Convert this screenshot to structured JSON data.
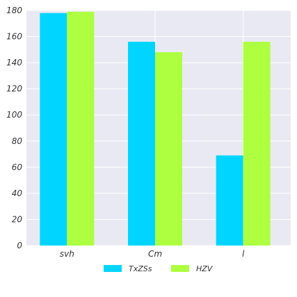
{
  "chart_data": {
    "type": "bar",
    "categories": [
      "svh",
      "Cm",
      "l"
    ],
    "series": [
      {
        "name": "TxZSs",
        "values": [
          178,
          156,
          69
        ],
        "color": "#00d5ff"
      },
      {
        "name": "HZV",
        "values": [
          179,
          148,
          156
        ],
        "color": "#adff3f"
      }
    ],
    "title": "",
    "xlabel": "",
    "ylabel": "",
    "ylim": [
      0,
      180
    ],
    "yticks": [
      0,
      20,
      40,
      60,
      80,
      100,
      120,
      140,
      160,
      180
    ],
    "grid": true,
    "background": "#e9e9f3",
    "legend_position": "bottom-center"
  }
}
